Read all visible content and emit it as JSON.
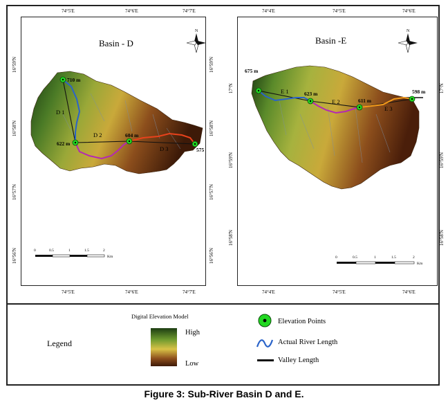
{
  "map_d": {
    "title": "Basin - D",
    "top_ticks": [
      "74°5'E",
      "74°6'E",
      "74°7'E"
    ],
    "bottom_ticks": [
      "74°5'E",
      "74°6'E",
      "74°7'E"
    ],
    "left_ticks": [
      "16°59'N",
      "16°58'N",
      "16°57'N",
      "16°56'N"
    ],
    "right_ticks": [
      "16°59'N",
      "16°58'N",
      "16°57'N",
      "16°56'N"
    ],
    "elevations": [
      "710 m",
      "622 m",
      "604 m",
      "575 m"
    ],
    "segments": [
      "D 1",
      "D 2",
      "D 3"
    ],
    "scale_ticks": [
      "0",
      "0.5",
      "1",
      "1.5",
      "2"
    ],
    "scale_unit": "Km"
  },
  "map_e": {
    "title": "Basin -E",
    "top_ticks": [
      "74°4'E",
      "74°5'E",
      "74°6'E"
    ],
    "bottom_ticks": [
      "74°4'E",
      "74°5'E",
      "74°6'E"
    ],
    "left_ticks": [
      "17°N",
      "16°59'N",
      "16°58'N"
    ],
    "right_ticks": [
      "17°N",
      "16°59'N",
      "16°58'N"
    ],
    "elevations": [
      "675 m",
      "623 m",
      "611 m",
      "598 m"
    ],
    "segments": [
      "E 1",
      "E 2",
      "E 3"
    ],
    "scale_ticks": [
      "0",
      "0.5",
      "1",
      "1.5",
      "2"
    ],
    "scale_unit": "Km"
  },
  "north_label": "N",
  "legend": {
    "heading": "Legend",
    "dem_title": "Digital Elevation Model",
    "dem_high": "High",
    "dem_low": "Low",
    "elevation_points": "Elevation Points",
    "river_length": "Actual River Length",
    "valley_length": "Valley  Length"
  },
  "colors": {
    "dem_high": "#1c3d12",
    "dem_mid": "#c9b33a",
    "dem_low": "#3d1a08",
    "river_d1_e1": "#2a63c9",
    "river_d2_e2": "#b428b4",
    "river_d3": "#e8421c",
    "river_e3": "#f39a1a",
    "point": "#22d822"
  },
  "caption": "Figure 3: Sub-River Basin D and E."
}
